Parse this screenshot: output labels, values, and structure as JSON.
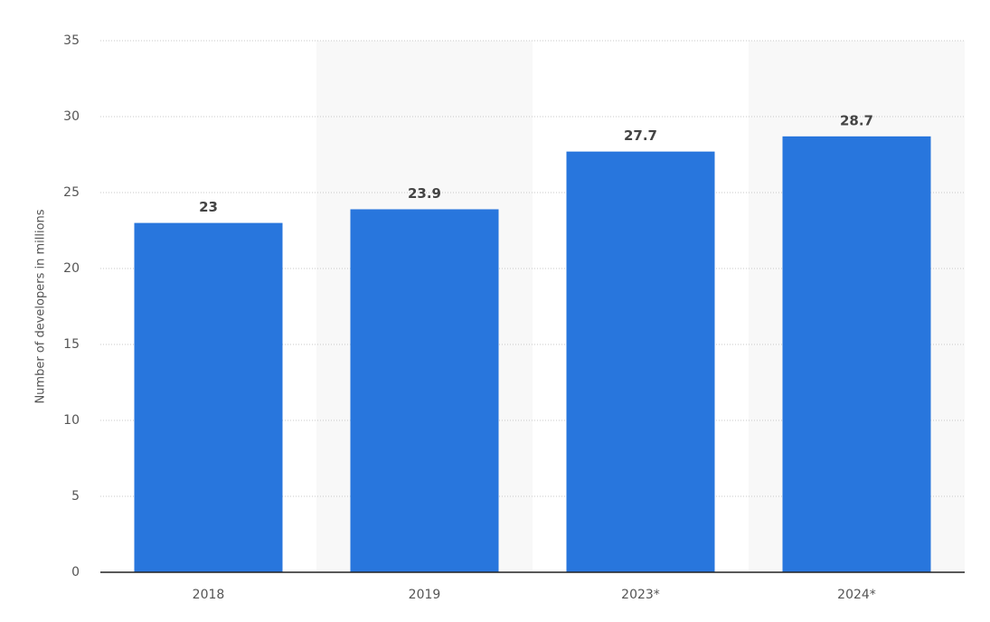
{
  "chart_data": {
    "type": "bar",
    "y_label": "Number of developers in millions",
    "categories": [
      "2018",
      "2019",
      "2023*",
      "2024*"
    ],
    "values": [
      23,
      23.9,
      27.7,
      28.7
    ],
    "color": "#2876dd",
    "ylim": [
      0,
      35
    ],
    "yticks": [
      0,
      5,
      10,
      15,
      20,
      25,
      30,
      35
    ],
    "grid": true
  }
}
